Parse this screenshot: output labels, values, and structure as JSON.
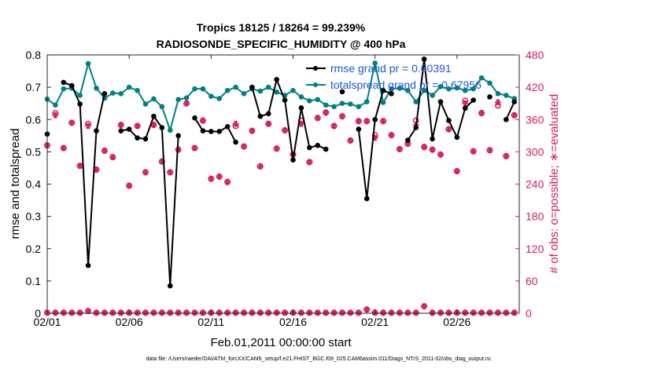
{
  "chart_data": {
    "type": "line",
    "title_line1": "Tropics 18125 / 18264 = 99.239%",
    "title_line2": "RADIOSONDE_SPECIFIC_HUMIDITY @ 400 hPa",
    "xlabel": "Feb.01,2011 00:00:00 start",
    "ylabel_left": "rmse and totalspread",
    "ylabel_right": "# of obs: o=possible; ∗=evaluated",
    "footnote": "data file: /Users/raeder/DAI/ATM_forcXX/CAM6_setup/f.e21.FHIST_BGC.f09_025.CAM6assim.011/Diags_NTrS_2011-02/obs_diag_output.nc",
    "xlim": [
      0,
      28.8
    ],
    "ylim_left": [
      0,
      0.8
    ],
    "ylim_right": [
      0,
      480
    ],
    "xticks": [
      {
        "x": 0,
        "label": "02/01"
      },
      {
        "x": 5,
        "label": "02/06"
      },
      {
        "x": 10,
        "label": "02/11"
      },
      {
        "x": 15,
        "label": "02/16"
      },
      {
        "x": 20,
        "label": "02/21"
      },
      {
        "x": 25,
        "label": "02/26"
      }
    ],
    "yticks_left": [
      "0",
      "0.1",
      "0.2",
      "0.3",
      "0.4",
      "0.5",
      "0.6",
      "0.7",
      "0.8"
    ],
    "yticks_right": [
      "0",
      "60",
      "120",
      "180",
      "240",
      "300",
      "360",
      "420",
      "480"
    ],
    "colors": {
      "rmse": "#000000",
      "spread": "#008080",
      "obs": "#d81b60",
      "legend_text": "#1a56d6"
    },
    "x": [
      0,
      0.5,
      1,
      1.5,
      2,
      2.5,
      3,
      3.5,
      4,
      4.5,
      5,
      5.5,
      6,
      6.5,
      7,
      7.5,
      8,
      8.5,
      9,
      9.5,
      10,
      10.5,
      11,
      11.5,
      12,
      12.5,
      13,
      13.5,
      14,
      14.5,
      15,
      15.5,
      16,
      16.5,
      17,
      17.5,
      18,
      18.5,
      19,
      19.5,
      20,
      20.5,
      21,
      21.5,
      22,
      22.5,
      23,
      23.5,
      24,
      24.5,
      25,
      25.5,
      26,
      26.5,
      27,
      27.5,
      28,
      28.5
    ],
    "series": [
      {
        "name": "rmse",
        "legend": "rmse grand pr = 0.60391",
        "values": [
          0.555,
          null,
          0.715,
          0.705,
          0.648,
          0.148,
          0.565,
          0.68,
          null,
          0.565,
          0.57,
          0.543,
          0.54,
          0.61,
          0.575,
          0.085,
          0.55,
          null,
          0.605,
          0.565,
          0.563,
          0.563,
          0.578,
          0.53,
          null,
          0.7,
          0.61,
          0.618,
          0.724,
          0.66,
          0.475,
          0.636,
          0.513,
          0.52,
          0.508,
          null,
          0.686,
          null,
          0.57,
          0.355,
          0.6,
          0.69,
          0.68,
          null,
          0.536,
          0.575,
          0.787,
          0.54,
          0.655,
          0.597,
          0.545,
          0.635,
          0.66,
          null,
          0.67,
          null,
          0.6,
          0.655
        ]
      },
      {
        "name": "totalspread",
        "legend": "totalspread grand pr = 0.67956",
        "values": [
          0.663,
          0.645,
          0.695,
          0.697,
          0.675,
          0.773,
          0.697,
          0.666,
          0.682,
          0.68,
          0.7,
          0.69,
          0.648,
          0.664,
          0.64,
          0.567,
          0.662,
          0.667,
          0.695,
          0.695,
          0.672,
          0.665,
          0.69,
          0.7,
          0.68,
          0.695,
          0.688,
          0.7,
          0.685,
          0.675,
          0.69,
          0.67,
          0.658,
          0.662,
          0.645,
          0.64,
          0.65,
          0.648,
          0.64,
          0.655,
          0.775,
          0.653,
          0.695,
          0.697,
          0.69,
          0.655,
          0.69,
          0.675,
          0.702,
          0.695,
          0.698,
          0.69,
          0.695,
          0.729,
          0.713,
          0.68,
          0.675,
          0.665
        ]
      },
      {
        "name": "possible",
        "values": [
          312,
          372,
          307,
          354,
          274,
          352,
          267,
          302,
          290,
          350,
          237,
          348,
          262,
          350,
          282,
          262,
          304,
          390,
          307,
          358,
          250,
          254,
          244,
          348,
          310,
          339,
          273,
          352,
          306,
          340,
          295,
          358,
          281,
          363,
          373,
          348,
          366,
          321,
          357,
          357,
          331,
          357,
          331,
          305,
          315,
          358,
          309,
          304,
          295,
          342,
          264,
          395,
          301,
          372,
          303,
          386,
          292,
          368
        ]
      },
      {
        "name": "evaluated",
        "values": [
          312,
          368,
          307,
          354,
          274,
          348,
          267,
          302,
          290,
          350,
          237,
          348,
          262,
          350,
          282,
          262,
          304,
          390,
          307,
          358,
          250,
          254,
          244,
          352,
          310,
          339,
          273,
          352,
          306,
          340,
          295,
          352,
          281,
          363,
          373,
          348,
          366,
          321,
          357,
          357,
          326,
          357,
          331,
          305,
          315,
          350,
          309,
          304,
          295,
          342,
          264,
          390,
          301,
          372,
          303,
          392,
          292,
          368
        ]
      }
    ],
    "zero_row": {
      "x": [
        0,
        0.5,
        1,
        1.5,
        2,
        2.5,
        3,
        3.5,
        4,
        4.5,
        5,
        5.5,
        6,
        6.5,
        7,
        7.5,
        8,
        8.5,
        9,
        9.5,
        10,
        10.5,
        11,
        11.5,
        12,
        12.5,
        13,
        13.5,
        14,
        14.5,
        15,
        15.5,
        16,
        16.5,
        17,
        17.5,
        18,
        18.5,
        19,
        19.5,
        20,
        20.5,
        21,
        21.5,
        22,
        22.5,
        23,
        23.5,
        24,
        24.5,
        25,
        25.5,
        26,
        26.5,
        27,
        27.5,
        28,
        28.5
      ],
      "values": [
        1,
        1,
        1,
        1,
        1,
        4,
        1,
        1,
        1,
        1,
        1,
        1,
        1,
        1,
        1,
        1,
        1,
        1,
        1,
        1,
        1,
        1,
        1,
        1,
        1,
        1,
        1,
        1,
        1,
        1,
        1,
        1,
        1,
        1,
        1,
        1,
        1,
        1,
        1,
        7,
        1,
        1,
        1,
        1,
        1,
        1,
        13,
        1,
        1,
        1,
        1,
        1,
        1,
        1,
        1,
        1,
        1,
        1
      ]
    }
  }
}
